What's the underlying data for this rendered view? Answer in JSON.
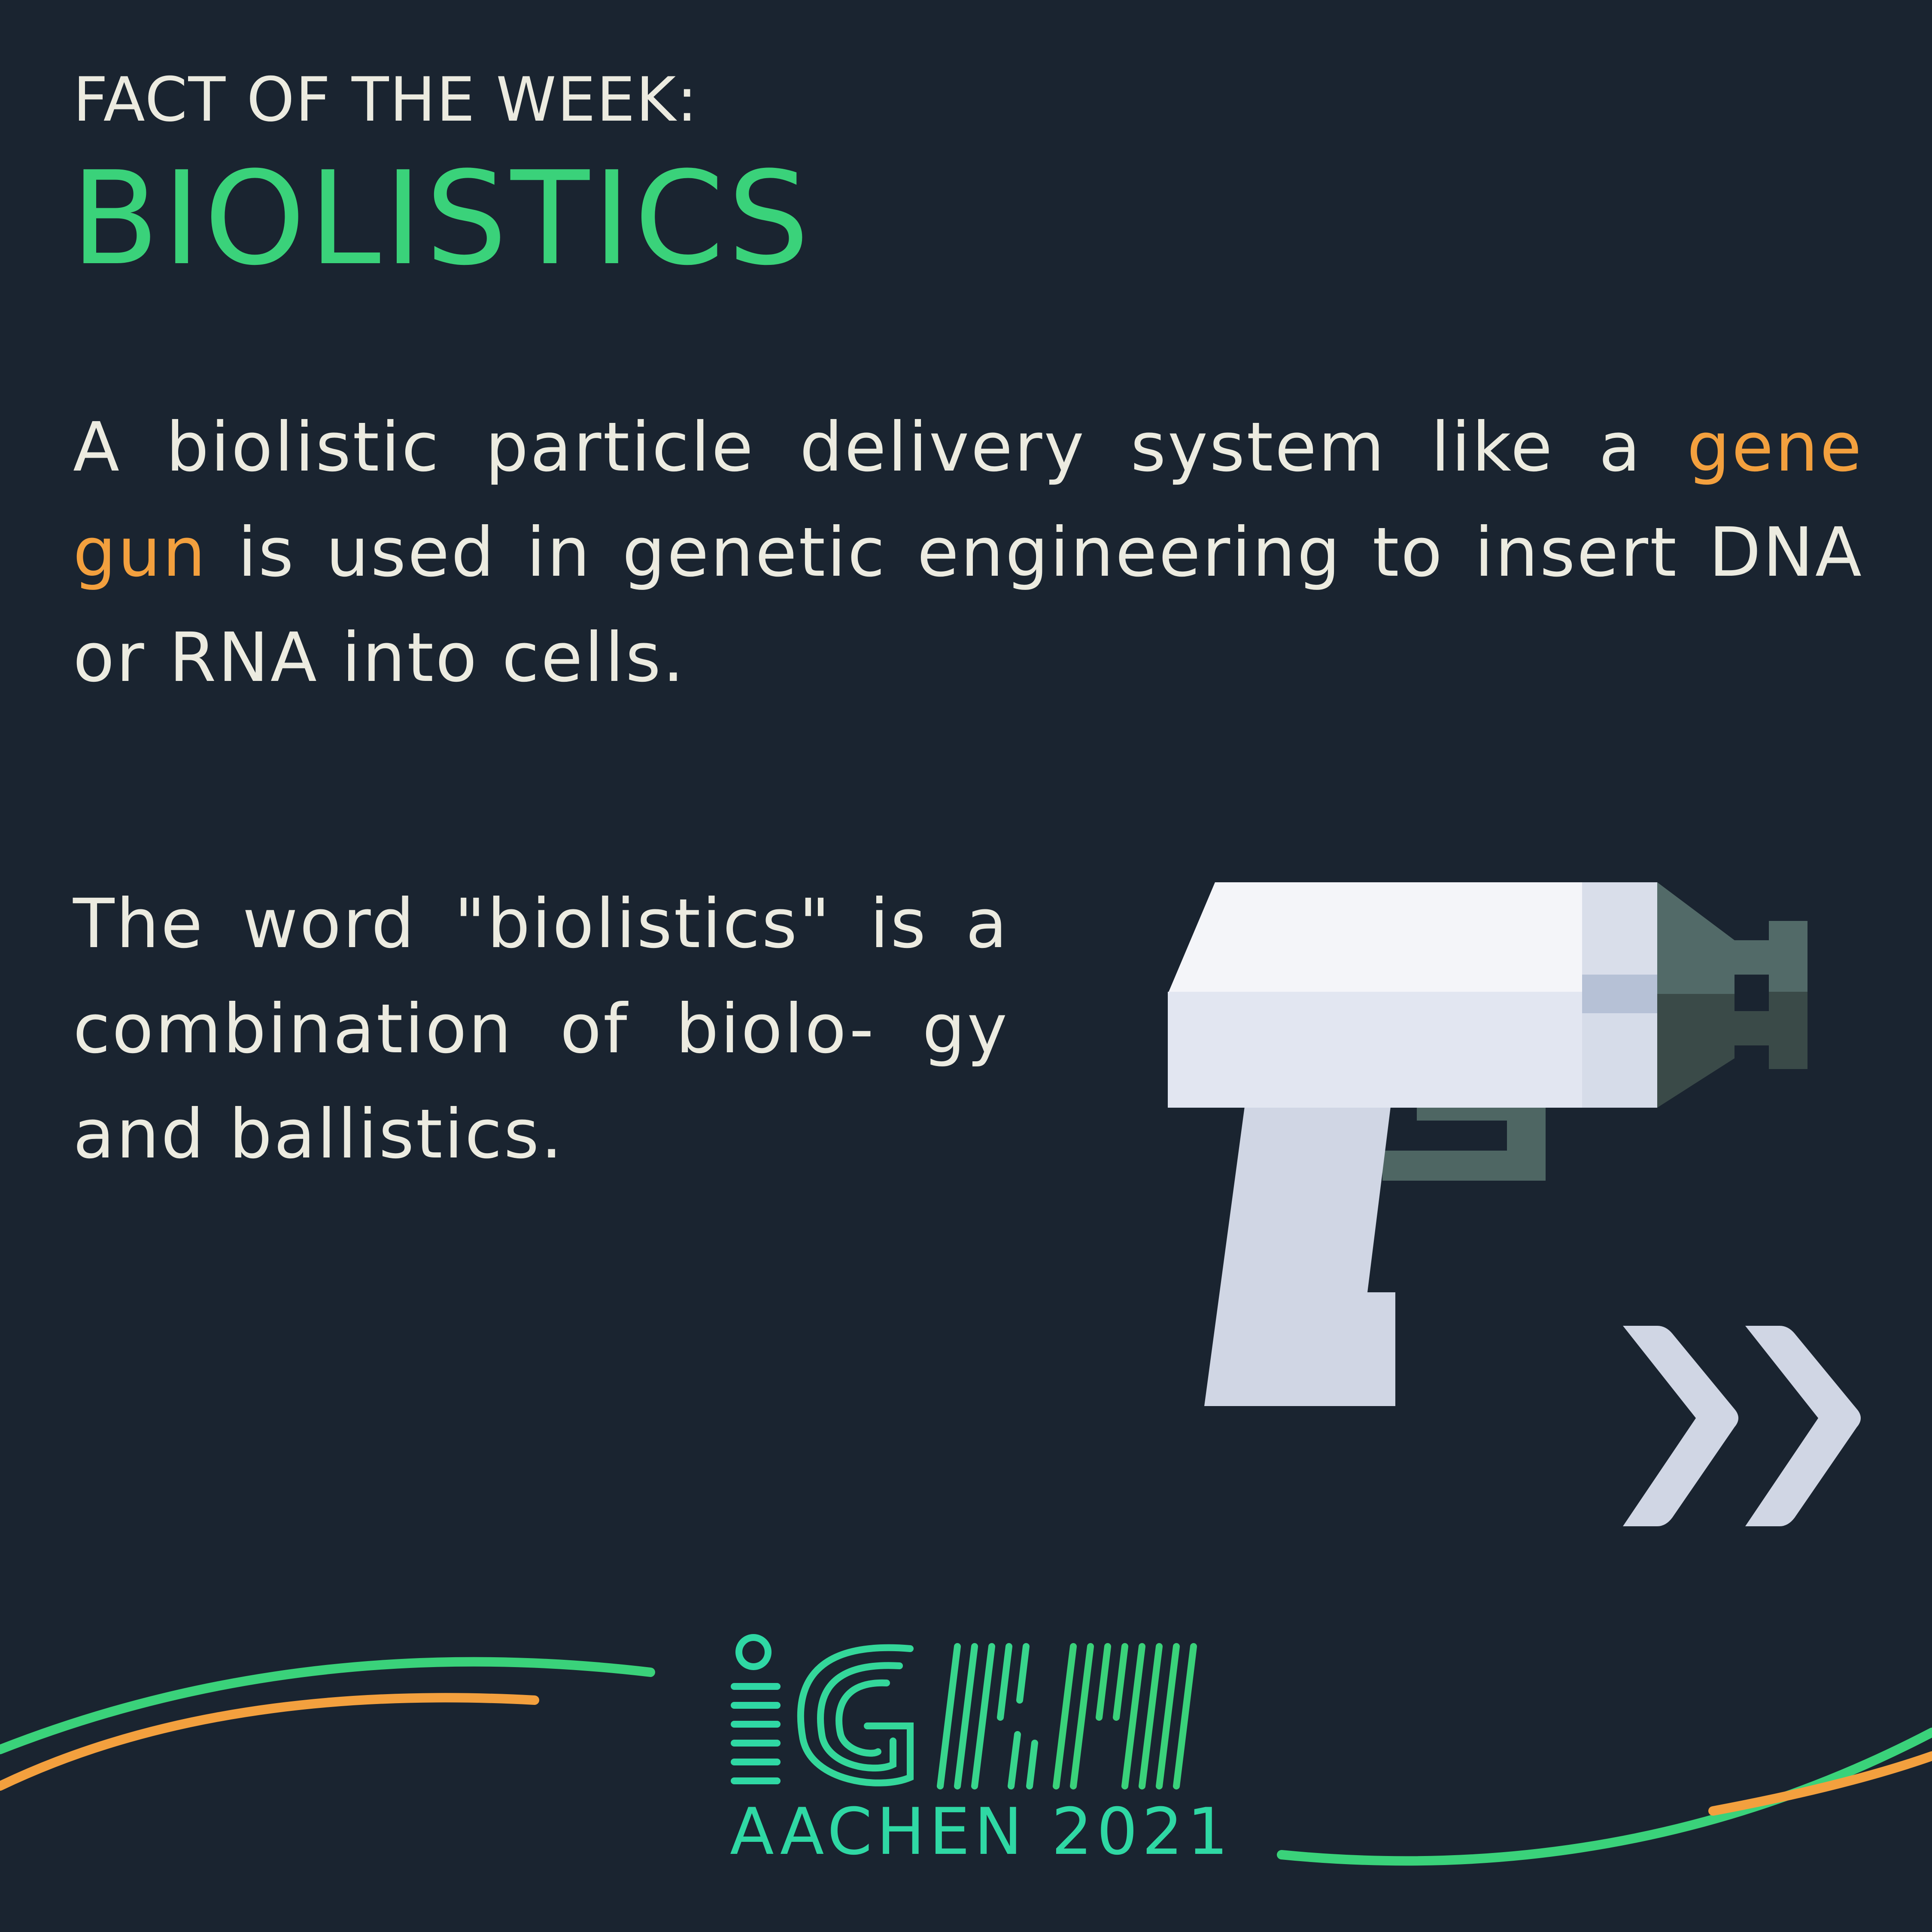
{
  "header": {
    "kicker": "FACT OF THE WEEK:",
    "title": "BIOLISTICS"
  },
  "paragraph1": {
    "before": "A biolistic particle delivery system like a ",
    "highlight": "gene gun",
    "after": " is used in genetic engineering to insert DNA or RNA into cells."
  },
  "paragraph2": {
    "text": "The word \"biolistics\" is a combination of biolo- gy and ballistics."
  },
  "logo": {
    "wordmark": "iGEM",
    "subtitle": "AACHEN 2021"
  },
  "colors": {
    "background": "#1a2430",
    "text": "#ecebe0",
    "accent_green": "#3ad27a",
    "accent_orange": "#f3a03e"
  },
  "icons": [
    "gene-gun-icon",
    "double-chevron-right-icon"
  ]
}
